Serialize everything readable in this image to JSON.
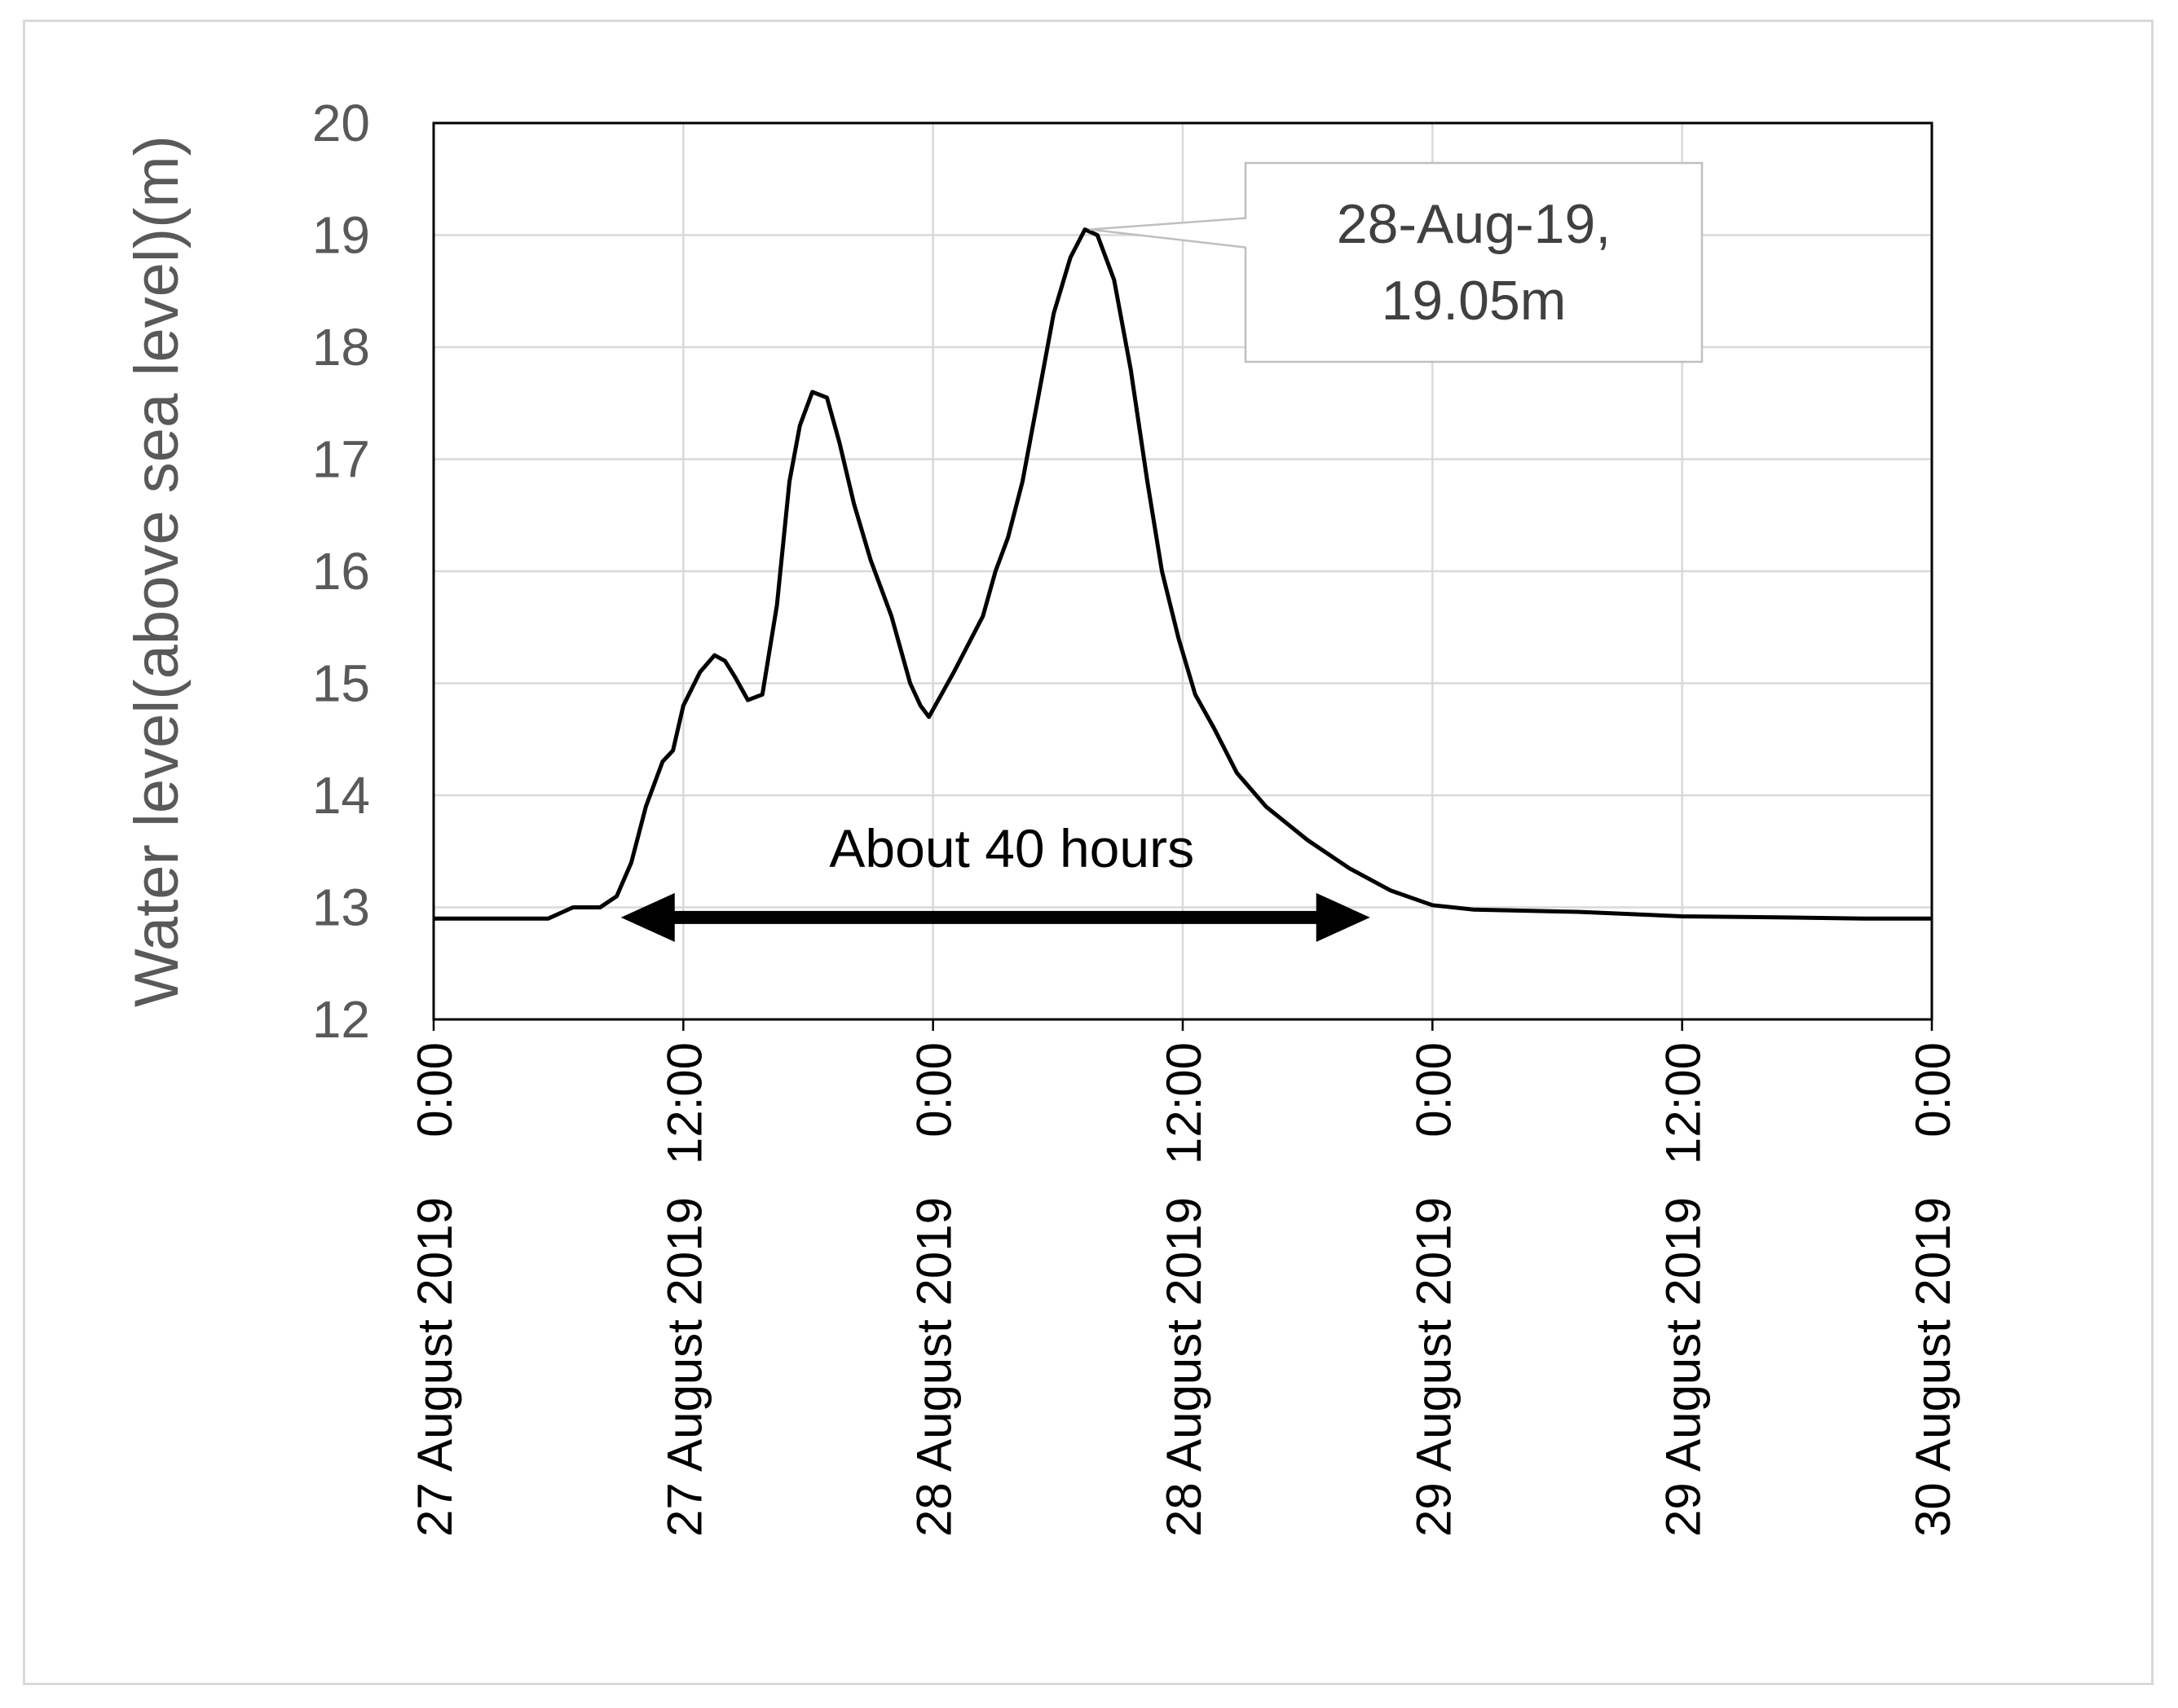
{
  "chart_data": {
    "type": "line",
    "title": "",
    "xlabel": "",
    "ylabel": "Water level(above sea level)(m)",
    "ylim": [
      12,
      20
    ],
    "xlim_hours": [
      0,
      72
    ],
    "grid": true,
    "yticks": [
      12,
      13,
      14,
      15,
      16,
      17,
      18,
      19,
      20
    ],
    "xticks": [
      {
        "hour": 0,
        "line1": "27 August  2019",
        "line2": "0:00"
      },
      {
        "hour": 12,
        "line1": "27 August  2019",
        "line2": "12:00"
      },
      {
        "hour": 24,
        "line1": "28 August  2019",
        "line2": "0:00"
      },
      {
        "hour": 36,
        "line1": "28 August  2019",
        "line2": "12:00"
      },
      {
        "hour": 48,
        "line1": "29 August  2019",
        "line2": "0:00"
      },
      {
        "hour": 60,
        "line1": "29 August  2019",
        "line2": "12:00"
      },
      {
        "hour": 72,
        "line1": "30 August  2019",
        "line2": "0:00"
      }
    ],
    "series": [
      {
        "name": "Water level",
        "color": "#000000",
        "points": [
          [
            0,
            12.9
          ],
          [
            2,
            12.9
          ],
          [
            5.5,
            12.9
          ],
          [
            6.7,
            13.0
          ],
          [
            8,
            13.0
          ],
          [
            8.8,
            13.1
          ],
          [
            9.5,
            13.4
          ],
          [
            10.2,
            13.9
          ],
          [
            11,
            14.3
          ],
          [
            11.5,
            14.4
          ],
          [
            12,
            14.8
          ],
          [
            12.8,
            15.1
          ],
          [
            13.5,
            15.25
          ],
          [
            14,
            15.2
          ],
          [
            14.5,
            15.05
          ],
          [
            15.1,
            14.85
          ],
          [
            15.8,
            14.9
          ],
          [
            16.5,
            15.7
          ],
          [
            17.1,
            16.8
          ],
          [
            17.6,
            17.3
          ],
          [
            18.2,
            17.6
          ],
          [
            18.9,
            17.55
          ],
          [
            19.5,
            17.15
          ],
          [
            20.2,
            16.6
          ],
          [
            21,
            16.1
          ],
          [
            22,
            15.6
          ],
          [
            22.9,
            15.0
          ],
          [
            23.4,
            14.8
          ],
          [
            23.8,
            14.7
          ],
          [
            24.4,
            14.9
          ],
          [
            25,
            15.1
          ],
          [
            25.7,
            15.35
          ],
          [
            26.4,
            15.6
          ],
          [
            27,
            16.0
          ],
          [
            27.6,
            16.3
          ],
          [
            28.3,
            16.8
          ],
          [
            29.1,
            17.6
          ],
          [
            29.8,
            18.3
          ],
          [
            30.6,
            18.8
          ],
          [
            31.3,
            19.05
          ],
          [
            31.9,
            19.0
          ],
          [
            32.7,
            18.6
          ],
          [
            33.5,
            17.8
          ],
          [
            34.3,
            16.8
          ],
          [
            35,
            16.0
          ],
          [
            35.8,
            15.4
          ],
          [
            36.6,
            14.9
          ],
          [
            37.5,
            14.6
          ],
          [
            38.6,
            14.2
          ],
          [
            40,
            13.9
          ],
          [
            42,
            13.6
          ],
          [
            44,
            13.35
          ],
          [
            46,
            13.15
          ],
          [
            48,
            13.02
          ],
          [
            50,
            12.98
          ],
          [
            55,
            12.96
          ],
          [
            60,
            12.92
          ],
          [
            65,
            12.91
          ],
          [
            69,
            12.9
          ],
          [
            72,
            12.9
          ]
        ]
      }
    ],
    "annotations": {
      "peak_callout": {
        "line1": "28-Aug-19,",
        "line2": "19.05m",
        "x_hour": 31.3,
        "y_value": 19.05
      },
      "duration_arrow": {
        "label": "About 40 hours",
        "start_hour": 9,
        "end_hour": 45,
        "y_value": 12.91
      }
    }
  }
}
